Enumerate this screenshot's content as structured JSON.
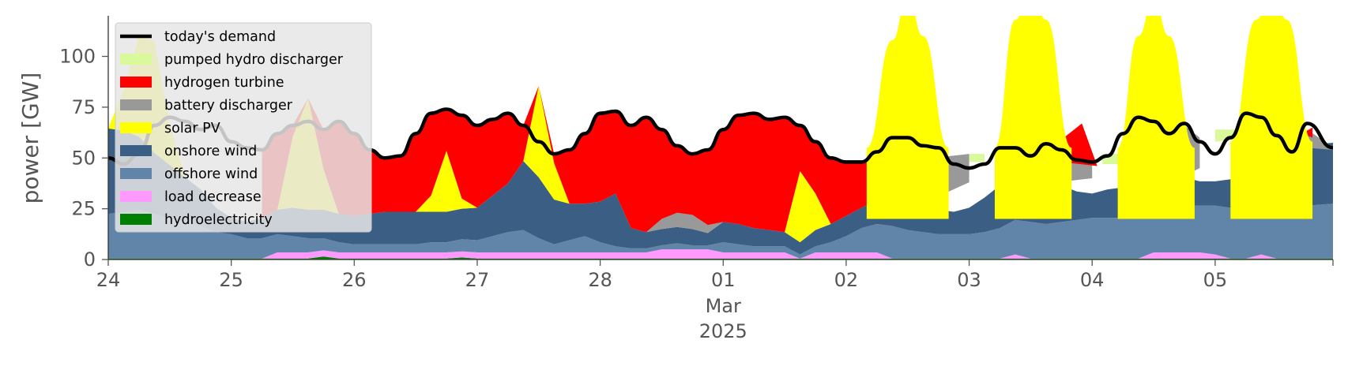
{
  "chart_data": {
    "type": "area",
    "xlabel": "",
    "ylabel": "power [GW]",
    "ylim": [
      0,
      120
    ],
    "yticks": [
      0,
      25,
      50,
      75,
      100
    ],
    "x_start": "2025-02-24T00:00",
    "x_end": "2025-03-05T23:00",
    "x_ticks": [
      {
        "date": "2025-02-24",
        "label": "24"
      },
      {
        "date": "2025-02-25",
        "label": "25"
      },
      {
        "date": "2025-02-26",
        "label": "26"
      },
      {
        "date": "2025-02-27",
        "label": "27"
      },
      {
        "date": "2025-02-28",
        "label": "28"
      },
      {
        "date": "2025-03-01",
        "label": "01"
      },
      {
        "date": "2025-03-02",
        "label": "02"
      },
      {
        "date": "2025-03-03",
        "label": "03"
      },
      {
        "date": "2025-03-04",
        "label": "04"
      },
      {
        "date": "2025-03-05",
        "label": "05"
      }
    ],
    "x_month_label": "Mar",
    "x_year_label": "2025",
    "x": [
      "2025-02-24T00:00",
      "2025-02-24T03:00",
      "2025-02-24T06:00",
      "2025-02-24T09:00",
      "2025-02-24T12:00",
      "2025-02-24T15:00",
      "2025-02-24T18:00",
      "2025-02-24T21:00",
      "2025-02-25T00:00",
      "2025-02-25T03:00",
      "2025-02-25T06:00",
      "2025-02-25T09:00",
      "2025-02-25T12:00",
      "2025-02-25T15:00",
      "2025-02-25T18:00",
      "2025-02-25T21:00",
      "2025-02-26T00:00",
      "2025-02-26T03:00",
      "2025-02-26T06:00",
      "2025-02-26T09:00",
      "2025-02-26T12:00",
      "2025-02-26T15:00",
      "2025-02-26T18:00",
      "2025-02-26T21:00",
      "2025-02-27T00:00",
      "2025-02-27T03:00",
      "2025-02-27T06:00",
      "2025-02-27T09:00",
      "2025-02-27T12:00",
      "2025-02-27T15:00",
      "2025-02-27T18:00",
      "2025-02-27T21:00",
      "2025-02-28T00:00",
      "2025-02-28T03:00",
      "2025-02-28T06:00",
      "2025-02-28T09:00",
      "2025-02-28T12:00",
      "2025-02-28T15:00",
      "2025-02-28T18:00",
      "2025-02-28T21:00",
      "2025-03-01T00:00",
      "2025-03-01T03:00",
      "2025-03-01T06:00",
      "2025-03-01T09:00",
      "2025-03-01T12:00",
      "2025-03-01T15:00",
      "2025-03-01T18:00",
      "2025-03-01T21:00",
      "2025-03-02T00:00",
      "2025-03-02T03:00",
      "2025-03-02T06:00",
      "2025-03-02T09:00",
      "2025-03-02T12:00",
      "2025-03-02T15:00",
      "2025-03-02T18:00",
      "2025-03-02T21:00",
      "2025-03-03T00:00",
      "2025-03-03T03:00",
      "2025-03-03T06:00",
      "2025-03-03T09:00",
      "2025-03-03T12:00",
      "2025-03-03T15:00",
      "2025-03-03T18:00",
      "2025-03-03T21:00",
      "2025-03-04T00:00",
      "2025-03-04T03:00",
      "2025-03-04T06:00",
      "2025-03-04T09:00",
      "2025-03-04T12:00",
      "2025-03-04T15:00",
      "2025-03-04T18:00",
      "2025-03-04T21:00",
      "2025-03-05T00:00",
      "2025-03-05T03:00",
      "2025-03-05T06:00",
      "2025-03-05T09:00",
      "2025-03-05T12:00",
      "2025-03-05T15:00",
      "2025-03-05T18:00",
      "2025-03-05T23:00"
    ],
    "series": [
      {
        "name": "hydroelectricity",
        "color": "#008000",
        "kind": "area",
        "values": [
          0.5,
          0.5,
          0.5,
          0.5,
          0.5,
          0.5,
          0.5,
          0.5,
          0.5,
          0.5,
          0.5,
          0.5,
          0.5,
          0.5,
          1.5,
          0.5,
          0.5,
          0.5,
          0.5,
          0.5,
          0.5,
          0.5,
          0.5,
          1,
          0.5,
          0.5,
          0.5,
          0.5,
          0.5,
          0.5,
          0.5,
          0.5,
          0.5,
          0.5,
          0.5,
          0.5,
          0.5,
          0.5,
          0.5,
          0.5,
          0.5,
          0.5,
          0.5,
          0.5,
          0.5,
          0.5,
          0.5,
          0.5,
          0.5,
          0.5,
          0.5,
          0.5,
          0.5,
          0.5,
          0.5,
          0.5,
          0.5,
          0.5,
          0.5,
          0.5,
          0.5,
          0.5,
          0.5,
          0.5,
          0.5,
          0.5,
          0.5,
          0.5,
          0.5,
          0.5,
          0.5,
          0.5,
          0.5,
          0.5,
          0.5,
          0.5,
          0.5,
          0.5,
          0.5,
          0.5
        ]
      },
      {
        "name": "load decrease",
        "color": "#ff99ff",
        "kind": "area",
        "values": [
          0,
          0,
          0,
          0,
          0,
          0,
          0,
          0,
          0,
          0,
          0,
          3,
          3,
          3,
          3,
          3,
          3,
          3,
          3,
          3,
          3,
          3,
          3,
          3,
          3,
          3,
          3,
          3,
          3,
          3,
          3,
          3,
          3,
          3,
          3,
          3,
          4.5,
          4.5,
          4.5,
          4.5,
          3,
          3,
          3,
          3,
          3,
          0,
          3,
          3,
          3,
          3,
          3,
          0,
          0,
          0,
          0,
          0,
          0,
          0,
          0,
          2,
          0,
          0,
          0,
          0,
          0,
          0,
          0,
          0,
          3,
          3,
          3,
          3,
          2,
          0,
          0,
          2,
          0,
          0,
          0,
          0
        ]
      },
      {
        "name": "offshore wind",
        "color": "#6185a9",
        "kind": "area",
        "values": [
          22,
          23,
          24,
          22,
          20,
          18,
          16,
          13,
          12,
          10,
          10,
          9,
          8,
          7,
          6,
          5,
          4,
          4,
          4,
          4,
          4,
          5,
          5,
          6,
          6,
          8,
          10,
          11,
          7,
          4,
          6,
          8,
          5,
          3,
          2,
          2,
          2,
          3,
          2,
          2,
          5,
          4,
          3,
          3,
          3,
          2,
          3,
          5,
          8,
          12,
          14,
          16,
          14,
          13,
          12,
          12,
          12,
          13,
          15,
          17,
          18,
          17,
          18,
          19,
          20,
          20,
          20,
          21,
          22,
          22,
          23,
          23,
          24,
          25,
          26,
          27,
          26,
          24,
          26,
          27
        ]
      },
      {
        "name": "onshore wind",
        "color": "#3b5f84",
        "kind": "area",
        "values": [
          42,
          40,
          36,
          30,
          26,
          22,
          18,
          12,
          8,
          8,
          10,
          12,
          14,
          14,
          14,
          14,
          14,
          15,
          16,
          16,
          16,
          15,
          15,
          15,
          16,
          20,
          24,
          34,
          30,
          22,
          18,
          16,
          20,
          26,
          10,
          8,
          8,
          8,
          8,
          6,
          10,
          10,
          9,
          8,
          7,
          6,
          8,
          9,
          10,
          10,
          12,
          14,
          18,
          14,
          12,
          11,
          13,
          17,
          21,
          23,
          24,
          22,
          18,
          14,
          12,
          14,
          15,
          17,
          17,
          16,
          14,
          12,
          12,
          14,
          20,
          24,
          32,
          36,
          30,
          30
        ]
      },
      {
        "name": "solar PV",
        "color": "#ffff00",
        "kind": "area",
        "values": [
          0,
          20,
          50,
          55,
          20,
          0,
          0,
          0,
          0,
          0,
          0,
          0,
          35,
          55,
          20,
          0,
          0,
          0,
          0,
          0,
          0,
          8,
          30,
          5,
          0,
          0,
          0,
          0,
          45,
          18,
          0,
          0,
          0,
          0,
          0,
          0,
          0,
          0,
          0,
          0,
          0,
          0,
          0,
          0,
          0,
          35,
          18,
          0,
          0,
          0,
          0,
          0,
          0,
          0,
          0,
          0,
          0,
          0,
          0,
          0,
          0,
          0,
          0,
          0,
          0,
          0,
          0,
          0,
          0,
          0,
          0,
          0,
          0,
          0,
          0,
          0,
          0,
          0,
          0,
          0
        ]
      },
      {
        "name": "battery discharger",
        "color": "#999999",
        "kind": "area",
        "values": [
          0,
          0,
          0,
          0,
          0,
          0,
          0,
          0,
          0,
          0,
          0,
          0,
          0,
          0,
          0,
          0,
          0,
          0,
          0,
          0,
          0,
          0,
          0,
          0,
          0,
          0,
          0,
          0,
          0,
          0,
          0,
          0,
          0,
          0,
          0,
          0,
          5,
          7,
          7,
          4,
          0,
          0,
          0,
          0,
          0,
          0,
          0,
          0,
          0,
          0,
          0,
          0,
          0,
          0,
          0,
          0,
          0,
          0,
          0,
          0,
          0,
          0,
          0,
          0,
          0,
          0,
          0,
          0,
          0,
          0,
          0,
          0,
          0,
          0,
          0,
          0,
          0,
          0,
          0,
          0
        ]
      },
      {
        "name": "hydrogen turbine",
        "color": "#ff0000",
        "kind": "area",
        "values": [
          0,
          0,
          0,
          0,
          0,
          0,
          0,
          0,
          0,
          0,
          0,
          0,
          0,
          0,
          0,
          0,
          0,
          0,
          0,
          0,
          0,
          0,
          0,
          0,
          0,
          0,
          0,
          0,
          0,
          0,
          0,
          0,
          0,
          0,
          0,
          0,
          0,
          0,
          0,
          0,
          0,
          0,
          0,
          0,
          0,
          0,
          0,
          0,
          0,
          0,
          0,
          0,
          0,
          0,
          0,
          0,
          0,
          0,
          0,
          0,
          0,
          0,
          0,
          0,
          0,
          0,
          0,
          0,
          0,
          0,
          0,
          0,
          0,
          0,
          0,
          0,
          0,
          0,
          0,
          0
        ]
      },
      {
        "name": "pumped hydro discharger",
        "color": "#d9f99b",
        "kind": "area",
        "values": [
          0,
          0,
          0,
          0,
          0,
          0,
          0,
          0,
          0,
          0,
          0,
          0,
          0,
          0,
          0,
          0,
          0,
          0,
          0,
          0,
          0,
          0,
          0,
          0,
          0,
          0,
          0,
          0,
          0,
          0,
          0,
          0,
          0,
          0,
          0,
          0,
          0,
          0,
          0,
          0,
          0,
          0,
          0,
          0,
          0,
          0,
          0,
          0,
          0,
          0,
          0,
          0,
          0,
          0,
          0,
          0,
          0,
          0,
          0,
          0,
          0,
          0,
          0,
          0,
          0,
          0,
          0,
          0,
          0,
          0,
          0,
          0,
          0,
          0,
          0,
          0,
          0,
          0,
          0,
          0
        ]
      },
      {
        "name": "today's demand",
        "color": "#000000",
        "kind": "line",
        "values": [
          50,
          47,
          52,
          66,
          70,
          68,
          64,
          66,
          58,
          55,
          54,
          62,
          66,
          68,
          64,
          68,
          62,
          54,
          50,
          51,
          62,
          72,
          74,
          71,
          66,
          69,
          72,
          66,
          58,
          52,
          54,
          62,
          72,
          73,
          66,
          70,
          64,
          56,
          52,
          54,
          64,
          71,
          72,
          69,
          70,
          66,
          58,
          50,
          48,
          48,
          53,
          60,
          60,
          56,
          55,
          47,
          45,
          47,
          55,
          55,
          51,
          57,
          54,
          49,
          48,
          51,
          62,
          70,
          68,
          62,
          67,
          58,
          52,
          60,
          72,
          70,
          61,
          53,
          67,
          55
        ]
      }
    ],
    "peaks": [
      {
        "name": "solar PV",
        "color": "#ffff00",
        "x": [
          "2025-03-02T04:00",
          "2025-03-02T09:00",
          "2025-03-02T12:00",
          "2025-03-02T15:00",
          "2025-03-02T20:00"
        ],
        "y": [
          55,
          108,
          130,
          110,
          55
        ]
      },
      {
        "name": "solar PV",
        "color": "#ffff00",
        "x": [
          "2025-03-03T05:00",
          "2025-03-03T09:00",
          "2025-03-03T12:00",
          "2025-03-03T15:00",
          "2025-03-03T20:00"
        ],
        "y": [
          55,
          118,
          135,
          118,
          55
        ]
      },
      {
        "name": "solar PV",
        "color": "#ffff00",
        "x": [
          "2025-03-04T05:00",
          "2025-03-04T09:00",
          "2025-03-04T12:00",
          "2025-03-04T15:00",
          "2025-03-04T20:00"
        ],
        "y": [
          55,
          110,
          128,
          110,
          55
        ]
      },
      {
        "name": "solar PV",
        "color": "#ffff00",
        "x": [
          "2025-03-05T03:00",
          "2025-03-05T08:00",
          "2025-03-05T11:00",
          "2025-03-05T14:00",
          "2025-03-05T19:00"
        ],
        "y": [
          58,
          118,
          135,
          118,
          58
        ]
      }
    ],
    "fills": [
      {
        "name": "hydrogen turbine",
        "color": "#ff0000",
        "note": "fills gap up to demand on 25–28 Feb and 01 Mar"
      },
      {
        "name": "battery discharger",
        "color": "#999999",
        "note": "grey wedges on 03–05 Mar"
      },
      {
        "name": "pumped hydro discharger",
        "color": "#d9f99b",
        "note": "light green slivers on 03–05 Mar"
      }
    ],
    "legend": {
      "position": "upper-left",
      "entries": [
        {
          "label": "today's demand",
          "color": "#000000",
          "kind": "line"
        },
        {
          "label": "pumped hydro discharger",
          "color": "#d9f99b",
          "kind": "patch"
        },
        {
          "label": "hydrogen turbine",
          "color": "#ff0000",
          "kind": "patch"
        },
        {
          "label": "battery discharger",
          "color": "#999999",
          "kind": "patch"
        },
        {
          "label": "solar PV",
          "color": "#ffff00",
          "kind": "patch"
        },
        {
          "label": "onshore wind",
          "color": "#3b5f84",
          "kind": "patch"
        },
        {
          "label": "offshore wind",
          "color": "#6185a9",
          "kind": "patch"
        },
        {
          "label": "load decrease",
          "color": "#ff99ff",
          "kind": "patch"
        },
        {
          "label": "hydroelectricity",
          "color": "#008000",
          "kind": "patch"
        }
      ]
    },
    "grid": false
  }
}
